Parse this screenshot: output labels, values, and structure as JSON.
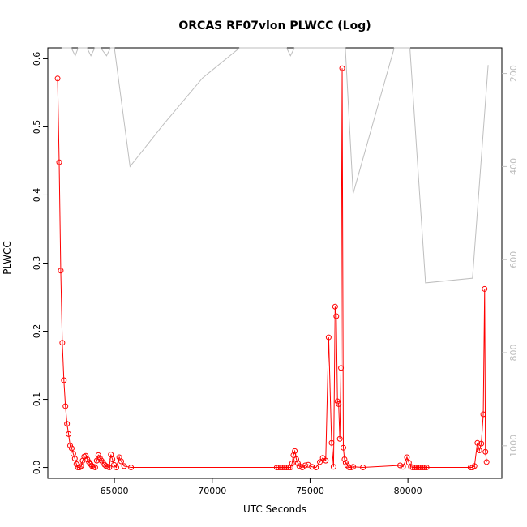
{
  "chart_data": {
    "type": "line",
    "title": "ORCAS RF07vlon PLWCC (Log)",
    "xlabel": "UTC Seconds",
    "ylabel": "PLWCC",
    "xlim": [
      61600,
      84800
    ],
    "ylim": [
      -0.016,
      0.616
    ],
    "x_ticks": [
      65000,
      70000,
      75000,
      80000
    ],
    "x_tick_labels": [
      "65000",
      "70000",
      "75000",
      "80000"
    ],
    "y_ticks": [
      0.0,
      0.1,
      0.2,
      0.3,
      0.4,
      0.5,
      0.6
    ],
    "y_tick_labels": [
      "0.0",
      "0.1",
      "0.2",
      "0.3",
      "0.4",
      "0.5",
      "0.6"
    ],
    "y2lim": [
      1070,
      145
    ],
    "y2_ticks": [
      200,
      400,
      600,
      800,
      1000
    ],
    "y2_tick_labels": [
      "200",
      "400",
      "600",
      "800",
      "1000"
    ],
    "grid": false,
    "colors": {
      "primary": "#ff0000",
      "secondary": "#bebebe",
      "axis": "#000000"
    },
    "series": [
      {
        "axis": "left",
        "style": "line-with-circle-markers",
        "color": "#ff0000",
        "points": [
          [
            62100,
            0.571
          ],
          [
            62180,
            0.448
          ],
          [
            62260,
            0.289
          ],
          [
            62340,
            0.183
          ],
          [
            62420,
            0.128
          ],
          [
            62500,
            0.09
          ],
          [
            62580,
            0.064
          ],
          [
            62660,
            0.049
          ],
          [
            62740,
            0.032
          ],
          [
            62820,
            0.028
          ],
          [
            62900,
            0.02
          ],
          [
            62980,
            0.013
          ],
          [
            63060,
            0.005
          ],
          [
            63140,
            0.0
          ],
          [
            63220,
            0.0
          ],
          [
            63300,
            0.002
          ],
          [
            63380,
            0.01
          ],
          [
            63460,
            0.016
          ],
          [
            63540,
            0.017
          ],
          [
            63620,
            0.012
          ],
          [
            63700,
            0.008
          ],
          [
            63780,
            0.005
          ],
          [
            63860,
            0.002
          ],
          [
            63940,
            0.001
          ],
          [
            64020,
            0.0
          ],
          [
            64100,
            0.01
          ],
          [
            64180,
            0.018
          ],
          [
            64260,
            0.014
          ],
          [
            64340,
            0.01
          ],
          [
            64420,
            0.007
          ],
          [
            64500,
            0.004
          ],
          [
            64580,
            0.002
          ],
          [
            64660,
            0.001
          ],
          [
            64740,
            0.0
          ],
          [
            64820,
            0.019
          ],
          [
            64900,
            0.012
          ],
          [
            64980,
            0.004
          ],
          [
            65100,
            0.0
          ],
          [
            65250,
            0.015
          ],
          [
            65350,
            0.009
          ],
          [
            65500,
            0.002
          ],
          [
            65850,
            0.0
          ],
          [
            73300,
            0.0
          ],
          [
            73400,
            0.0
          ],
          [
            73500,
            0.0
          ],
          [
            73600,
            0.0
          ],
          [
            73700,
            0.0
          ],
          [
            73800,
            0.0
          ],
          [
            73900,
            0.0
          ],
          [
            74000,
            0.0
          ],
          [
            74080,
            0.006
          ],
          [
            74150,
            0.018
          ],
          [
            74220,
            0.024
          ],
          [
            74300,
            0.012
          ],
          [
            74380,
            0.006
          ],
          [
            74450,
            0.002
          ],
          [
            74600,
            0.0
          ],
          [
            74750,
            0.003
          ],
          [
            74900,
            0.004
          ],
          [
            75100,
            0.001
          ],
          [
            75300,
            0.0
          ],
          [
            75500,
            0.008
          ],
          [
            75650,
            0.014
          ],
          [
            75800,
            0.01
          ],
          [
            75950,
            0.191
          ],
          [
            76100,
            0.036
          ],
          [
            76200,
            0.001
          ],
          [
            76280,
            0.236
          ],
          [
            76340,
            0.222
          ],
          [
            76400,
            0.097
          ],
          [
            76460,
            0.093
          ],
          [
            76520,
            0.042
          ],
          [
            76580,
            0.146
          ],
          [
            76640,
            0.586
          ],
          [
            76700,
            0.029
          ],
          [
            76760,
            0.012
          ],
          [
            76820,
            0.007
          ],
          [
            76900,
            0.003
          ],
          [
            77000,
            0.0
          ],
          [
            77100,
            0.0
          ],
          [
            77200,
            0.001
          ],
          [
            77700,
            0.0
          ],
          [
            79600,
            0.003
          ],
          [
            79750,
            0.001
          ],
          [
            79950,
            0.015
          ],
          [
            80050,
            0.007
          ],
          [
            80150,
            0.001
          ],
          [
            80250,
            0.0
          ],
          [
            80350,
            0.0
          ],
          [
            80450,
            0.0
          ],
          [
            80550,
            0.0
          ],
          [
            80650,
            0.0
          ],
          [
            80750,
            0.0
          ],
          [
            80850,
            0.0
          ],
          [
            80950,
            0.0
          ],
          [
            83200,
            0.0
          ],
          [
            83300,
            0.0
          ],
          [
            83400,
            0.002
          ],
          [
            83550,
            0.036
          ],
          [
            83650,
            0.025
          ],
          [
            83750,
            0.035
          ],
          [
            83850,
            0.078
          ],
          [
            83920,
            0.262
          ],
          [
            83960,
            0.023
          ],
          [
            84020,
            0.008
          ]
        ]
      },
      {
        "axis": "right",
        "style": "line",
        "color": "#bebebe",
        "points": [
          [
            62300,
            145
          ],
          [
            62500,
            145
          ],
          [
            62800,
            145
          ],
          [
            63000,
            162
          ],
          [
            63150,
            145
          ],
          [
            63300,
            145
          ],
          [
            63600,
            145
          ],
          [
            63800,
            162
          ],
          [
            64000,
            145
          ],
          [
            64300,
            145
          ],
          [
            64600,
            162
          ],
          [
            64800,
            145
          ],
          [
            65000,
            145
          ],
          [
            65800,
            400
          ],
          [
            67500,
            310
          ],
          [
            69500,
            210
          ],
          [
            71400,
            145
          ],
          [
            73000,
            145
          ],
          [
            73800,
            145
          ],
          [
            74000,
            162
          ],
          [
            74200,
            145
          ],
          [
            76800,
            145
          ],
          [
            77200,
            458
          ],
          [
            79300,
            145
          ],
          [
            80100,
            145
          ],
          [
            80900,
            650
          ],
          [
            83300,
            640
          ],
          [
            84100,
            182
          ]
        ]
      }
    ]
  }
}
